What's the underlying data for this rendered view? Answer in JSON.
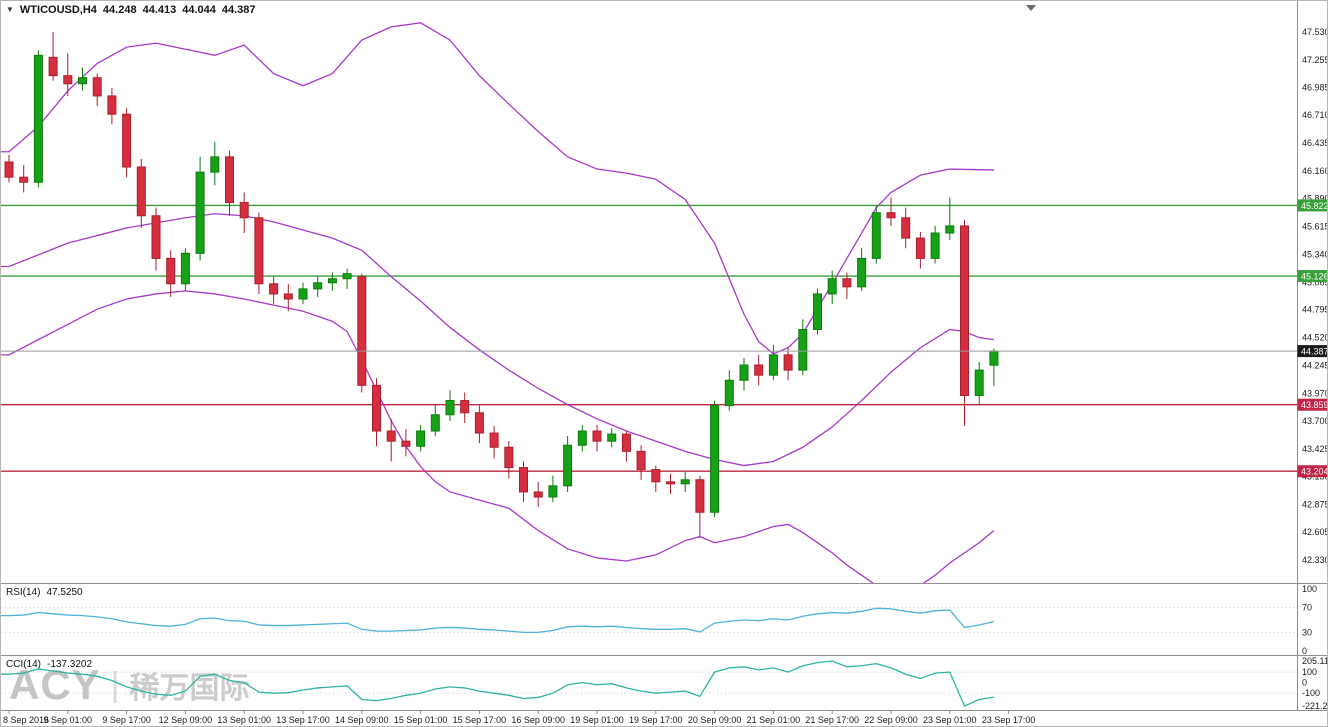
{
  "header": {
    "symbol": "WTICOUSD,H4",
    "ohlc": {
      "open": "44.248",
      "high": "44.413",
      "low": "44.044",
      "close": "44.387"
    }
  },
  "watermark": {
    "brand": "ACY",
    "divider": "|",
    "name": "稀万国际"
  },
  "colors": {
    "background": "#ffffff",
    "candle_up": "#16a116",
    "candle_up_border": "#0c7c0c",
    "candle_down": "#d52f3f",
    "candle_down_border": "#a81f2d",
    "bollinger": "#a838cc",
    "hline_green": "#38a038",
    "hline_red": "#c22443",
    "price_line": "#999999",
    "price_tag_bg": "#1a1a1a",
    "rsi_line": "#4fb3d9",
    "cci_line": "#2fb3a2",
    "level_dotted": "#b9c3ce",
    "separator": "#8f8f8f",
    "axis_text": "#1a1a1a",
    "shift_marker": "#6a6a6a"
  },
  "chart_data": {
    "type": "candlestick",
    "title": "WTICOUSD,H4",
    "symbol": "WTICOUSD",
    "timeframe": "H4",
    "current_ohlc": {
      "open": 44.248,
      "high": 44.413,
      "low": 44.044,
      "close": 44.387
    },
    "y_axis_labels": [
      "47.530",
      "47.255",
      "46.985",
      "46.710",
      "46.435",
      "46.160",
      "45.890",
      "45.615",
      "45.340",
      "45.065",
      "44.795",
      "44.520",
      "44.245",
      "43.970",
      "43.700",
      "43.425",
      "43.150",
      "42.875",
      "42.605",
      "42.330"
    ],
    "x_axis_labels": [
      "8 Sep 2016",
      "9 Sep 01:00",
      "9 Sep 17:00",
      "12 Sep 09:00",
      "13 Sep 01:00",
      "13 Sep 17:00",
      "14 Sep 09:00",
      "15 Sep 01:00",
      "15 Sep 17:00",
      "16 Sep 09:00",
      "19 Sep 01:00",
      "19 Sep 17:00",
      "20 Sep 09:00",
      "21 Sep 01:00",
      "21 Sep 17:00",
      "22 Sep 09:00",
      "23 Sep 01:00",
      "23 Sep 17:00"
    ],
    "candles": [
      [
        46.25,
        46.32,
        46.05,
        46.1
      ],
      [
        46.1,
        46.22,
        45.95,
        46.05
      ],
      [
        46.05,
        47.35,
        46.0,
        47.3
      ],
      [
        47.28,
        47.53,
        47.05,
        47.1
      ],
      [
        47.1,
        47.32,
        46.9,
        47.02
      ],
      [
        47.02,
        47.18,
        46.95,
        47.08
      ],
      [
        47.08,
        47.12,
        46.8,
        46.9
      ],
      [
        46.9,
        46.98,
        46.62,
        46.72
      ],
      [
        46.72,
        46.78,
        46.1,
        46.2
      ],
      [
        46.2,
        46.28,
        45.6,
        45.72
      ],
      [
        45.72,
        45.8,
        45.18,
        45.3
      ],
      [
        45.3,
        45.38,
        44.92,
        45.05
      ],
      [
        45.05,
        45.4,
        44.98,
        45.35
      ],
      [
        45.35,
        46.3,
        45.28,
        46.15
      ],
      [
        46.15,
        46.45,
        46.02,
        46.3
      ],
      [
        46.3,
        46.36,
        45.72,
        45.85
      ],
      [
        45.85,
        45.95,
        45.55,
        45.7
      ],
      [
        45.7,
        45.75,
        44.95,
        45.05
      ],
      [
        45.05,
        45.12,
        44.85,
        44.95
      ],
      [
        44.95,
        45.05,
        44.78,
        44.9
      ],
      [
        44.9,
        45.06,
        44.85,
        45.0
      ],
      [
        45.0,
        45.12,
        44.92,
        45.06
      ],
      [
        45.06,
        45.16,
        44.98,
        45.1
      ],
      [
        45.1,
        45.2,
        45.0,
        45.15
      ],
      [
        45.12,
        45.15,
        43.98,
        44.05
      ],
      [
        44.05,
        44.12,
        43.45,
        43.6
      ],
      [
        43.6,
        43.72,
        43.3,
        43.5
      ],
      [
        43.5,
        43.62,
        43.35,
        43.45
      ],
      [
        43.45,
        43.66,
        43.4,
        43.6
      ],
      [
        43.6,
        43.86,
        43.55,
        43.76
      ],
      [
        43.76,
        44.0,
        43.7,
        43.9
      ],
      [
        43.9,
        43.98,
        43.68,
        43.78
      ],
      [
        43.78,
        43.85,
        43.48,
        43.58
      ],
      [
        43.58,
        43.65,
        43.33,
        43.44
      ],
      [
        43.44,
        43.5,
        43.13,
        43.24
      ],
      [
        43.24,
        43.3,
        42.9,
        43.0
      ],
      [
        43.0,
        43.1,
        42.85,
        42.95
      ],
      [
        42.95,
        43.16,
        42.9,
        43.06
      ],
      [
        43.06,
        43.55,
        43.0,
        43.46
      ],
      [
        43.46,
        43.66,
        43.4,
        43.6
      ],
      [
        43.6,
        43.66,
        43.4,
        43.5
      ],
      [
        43.5,
        43.63,
        43.44,
        43.57
      ],
      [
        43.57,
        43.6,
        43.3,
        43.4
      ],
      [
        43.4,
        43.46,
        43.12,
        43.22
      ],
      [
        43.22,
        43.26,
        43.0,
        43.1
      ],
      [
        43.1,
        43.18,
        42.98,
        43.08
      ],
      [
        43.08,
        43.2,
        43.0,
        43.12
      ],
      [
        43.12,
        43.16,
        42.55,
        42.8
      ],
      [
        42.8,
        43.9,
        42.75,
        43.85
      ],
      [
        43.85,
        44.2,
        43.8,
        44.1
      ],
      [
        44.1,
        44.32,
        44.0,
        44.25
      ],
      [
        44.25,
        44.35,
        44.05,
        44.15
      ],
      [
        44.15,
        44.45,
        44.1,
        44.35
      ],
      [
        44.35,
        44.42,
        44.1,
        44.2
      ],
      [
        44.2,
        44.7,
        44.15,
        44.6
      ],
      [
        44.6,
        45.0,
        44.55,
        44.95
      ],
      [
        44.95,
        45.18,
        44.85,
        45.1
      ],
      [
        45.1,
        45.16,
        44.9,
        45.02
      ],
      [
        45.02,
        45.4,
        44.98,
        45.3
      ],
      [
        45.3,
        45.82,
        45.25,
        45.75
      ],
      [
        45.75,
        45.9,
        45.62,
        45.7
      ],
      [
        45.7,
        45.8,
        45.4,
        45.5
      ],
      [
        45.5,
        45.56,
        45.2,
        45.3
      ],
      [
        45.3,
        45.62,
        45.25,
        45.55
      ],
      [
        45.55,
        45.9,
        45.48,
        45.62
      ],
      [
        45.62,
        45.68,
        43.65,
        43.95
      ],
      [
        43.95,
        44.28,
        43.85,
        44.2
      ],
      [
        44.248,
        44.413,
        44.044,
        44.387
      ]
    ],
    "bollinger_bands": {
      "upper": [
        [
          0,
          46.35
        ],
        [
          2,
          46.6
        ],
        [
          4,
          46.95
        ],
        [
          6,
          47.22
        ],
        [
          8,
          47.38
        ],
        [
          10,
          47.42
        ],
        [
          12,
          47.36
        ],
        [
          14,
          47.3
        ],
        [
          16,
          47.4
        ],
        [
          18,
          47.12
        ],
        [
          20,
          47.0
        ],
        [
          22,
          47.12
        ],
        [
          24,
          47.45
        ],
        [
          26,
          47.58
        ],
        [
          28,
          47.62
        ],
        [
          30,
          47.45
        ],
        [
          32,
          47.1
        ],
        [
          34,
          46.82
        ],
        [
          36,
          46.55
        ],
        [
          38,
          46.3
        ],
        [
          40,
          46.18
        ],
        [
          42,
          46.14
        ],
        [
          44,
          46.08
        ],
        [
          46,
          45.88
        ],
        [
          48,
          45.45
        ],
        [
          50,
          44.75
        ],
        [
          51,
          44.48
        ],
        [
          52,
          44.36
        ],
        [
          53,
          44.42
        ],
        [
          54,
          44.56
        ],
        [
          56,
          45.05
        ],
        [
          58,
          45.55
        ],
        [
          59,
          45.8
        ],
        [
          60,
          45.95
        ],
        [
          62,
          46.12
        ],
        [
          64,
          46.18
        ],
        [
          67,
          46.17
        ]
      ],
      "middle": [
        [
          0,
          45.22
        ],
        [
          4,
          45.45
        ],
        [
          8,
          45.6
        ],
        [
          12,
          45.7
        ],
        [
          14,
          45.74
        ],
        [
          16,
          45.72
        ],
        [
          18,
          45.66
        ],
        [
          20,
          45.58
        ],
        [
          22,
          45.5
        ],
        [
          24,
          45.38
        ],
        [
          26,
          45.12
        ],
        [
          28,
          44.88
        ],
        [
          30,
          44.62
        ],
        [
          32,
          44.4
        ],
        [
          34,
          44.2
        ],
        [
          36,
          44.02
        ],
        [
          38,
          43.86
        ],
        [
          40,
          43.72
        ],
        [
          42,
          43.6
        ],
        [
          44,
          43.5
        ],
        [
          46,
          43.4
        ],
        [
          48,
          43.32
        ],
        [
          50,
          43.26
        ],
        [
          52,
          43.3
        ],
        [
          54,
          43.44
        ],
        [
          56,
          43.64
        ],
        [
          58,
          43.9
        ],
        [
          60,
          44.18
        ],
        [
          62,
          44.42
        ],
        [
          64,
          44.6
        ],
        [
          65,
          44.58
        ],
        [
          66,
          44.52
        ],
        [
          67,
          44.5
        ]
      ],
      "lower": [
        [
          0,
          44.35
        ],
        [
          2,
          44.5
        ],
        [
          4,
          44.65
        ],
        [
          6,
          44.8
        ],
        [
          8,
          44.9
        ],
        [
          10,
          44.95
        ],
        [
          12,
          44.98
        ],
        [
          14,
          44.95
        ],
        [
          16,
          44.9
        ],
        [
          18,
          44.84
        ],
        [
          20,
          44.78
        ],
        [
          22,
          44.68
        ],
        [
          23,
          44.58
        ],
        [
          24,
          44.3
        ],
        [
          25,
          44.0
        ],
        [
          26,
          43.7
        ],
        [
          27,
          43.45
        ],
        [
          28,
          43.25
        ],
        [
          29,
          43.1
        ],
        [
          30,
          43.0
        ],
        [
          32,
          42.92
        ],
        [
          34,
          42.84
        ],
        [
          36,
          42.62
        ],
        [
          38,
          42.44
        ],
        [
          40,
          42.35
        ],
        [
          42,
          42.32
        ],
        [
          44,
          42.38
        ],
        [
          46,
          42.52
        ],
        [
          47,
          42.56
        ],
        [
          48,
          42.5
        ],
        [
          50,
          42.56
        ],
        [
          52,
          42.66
        ],
        [
          53,
          42.68
        ],
        [
          54,
          42.6
        ],
        [
          55,
          42.5
        ],
        [
          56,
          42.4
        ],
        [
          57,
          42.28
        ],
        [
          58,
          42.18
        ],
        [
          59,
          42.08
        ],
        [
          60,
          42.02
        ],
        [
          61,
          42.02
        ],
        [
          62,
          42.08
        ],
        [
          63,
          42.18
        ],
        [
          64,
          42.3
        ],
        [
          65,
          42.4
        ],
        [
          66,
          42.5
        ],
        [
          67,
          42.62
        ]
      ]
    },
    "horizontal_lines": [
      {
        "price": 45.822,
        "label": "45.822",
        "color_key": "green"
      },
      {
        "price": 45.126,
        "label": "45.126",
        "color_key": "green"
      },
      {
        "price": 43.859,
        "label": "43.859",
        "color_key": "red"
      },
      {
        "price": 43.204,
        "label": "43.204",
        "color_key": "red"
      }
    ],
    "current_price_line": {
      "price": 44.387,
      "label": "44.387"
    },
    "indicators": [
      {
        "id": "rsi",
        "name": "RSI(14)",
        "value": "47.5250",
        "axis_labels": [
          "100",
          "70",
          "30",
          "0"
        ],
        "level_lines": [
          70,
          30
        ],
        "scale": [
          0,
          100
        ],
        "series": [
          57,
          58,
          62,
          60,
          58,
          57,
          55,
          52,
          47,
          44,
          41,
          40,
          43,
          52,
          53,
          49,
          48,
          42,
          41,
          41,
          42,
          43,
          44,
          45,
          35,
          32,
          32,
          33,
          34,
          37,
          38,
          37,
          35,
          34,
          32,
          30,
          30,
          33,
          39,
          40,
          39,
          40,
          38,
          36,
          35,
          35,
          36,
          31,
          45,
          48,
          50,
          49,
          52,
          50,
          56,
          60,
          62,
          61,
          64,
          69,
          68,
          64,
          61,
          65,
          66,
          38,
          42,
          47.5
        ]
      },
      {
        "id": "cci",
        "name": "CCI(14)",
        "value": "-137.3202",
        "axis_labels": [
          "205.1173",
          "100",
          "0",
          "-100",
          "-221.256"
        ],
        "level_lines": [
          100,
          -100
        ],
        "scale": [
          -221.256,
          205.1173
        ],
        "series": [
          80,
          90,
          130,
          110,
          90,
          80,
          60,
          20,
          -40,
          -80,
          -110,
          -120,
          -80,
          60,
          80,
          20,
          0,
          -90,
          -100,
          -95,
          -70,
          -50,
          -40,
          -30,
          -160,
          -170,
          -150,
          -120,
          -100,
          -60,
          -40,
          -50,
          -80,
          -100,
          -120,
          -150,
          -140,
          -100,
          -20,
          0,
          -20,
          -10,
          -50,
          -80,
          -100,
          -90,
          -80,
          -130,
          100,
          140,
          150,
          120,
          140,
          100,
          160,
          190,
          205.1173,
          150,
          160,
          180,
          140,
          80,
          40,
          90,
          100,
          -221.256,
          -160,
          -137.3202
        ]
      }
    ]
  }
}
